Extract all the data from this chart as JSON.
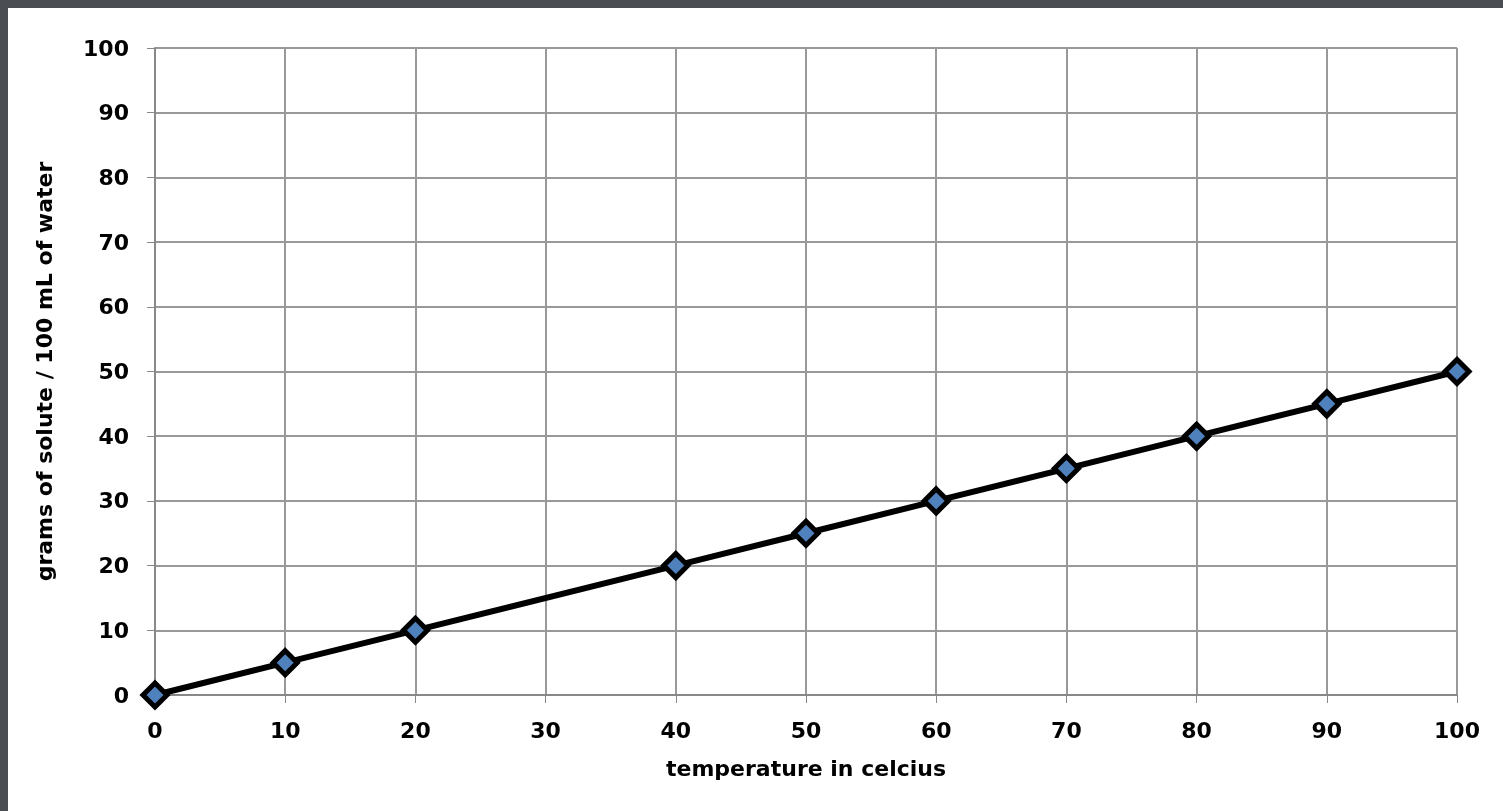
{
  "chart_data": {
    "type": "line",
    "xlabel": "temperature in celcius",
    "ylabel": "grams of solute / 100 mL of water",
    "x": [
      0,
      10,
      20,
      40,
      50,
      60,
      70,
      80,
      90,
      100
    ],
    "series": [
      {
        "color": "#000000",
        "values": [
          0,
          5,
          10,
          20,
          25,
          30,
          35,
          40,
          45,
          50
        ]
      }
    ],
    "xlim": [
      0,
      100
    ],
    "xticks": [
      0,
      10,
      20,
      30,
      40,
      50,
      60,
      70,
      80,
      90,
      100
    ],
    "ylim": [
      0,
      100
    ],
    "yticks": [
      0,
      10,
      20,
      30,
      40,
      50,
      60,
      70,
      80,
      90,
      100
    ],
    "grid": true,
    "marker": "diamond",
    "line_style": "solid"
  }
}
